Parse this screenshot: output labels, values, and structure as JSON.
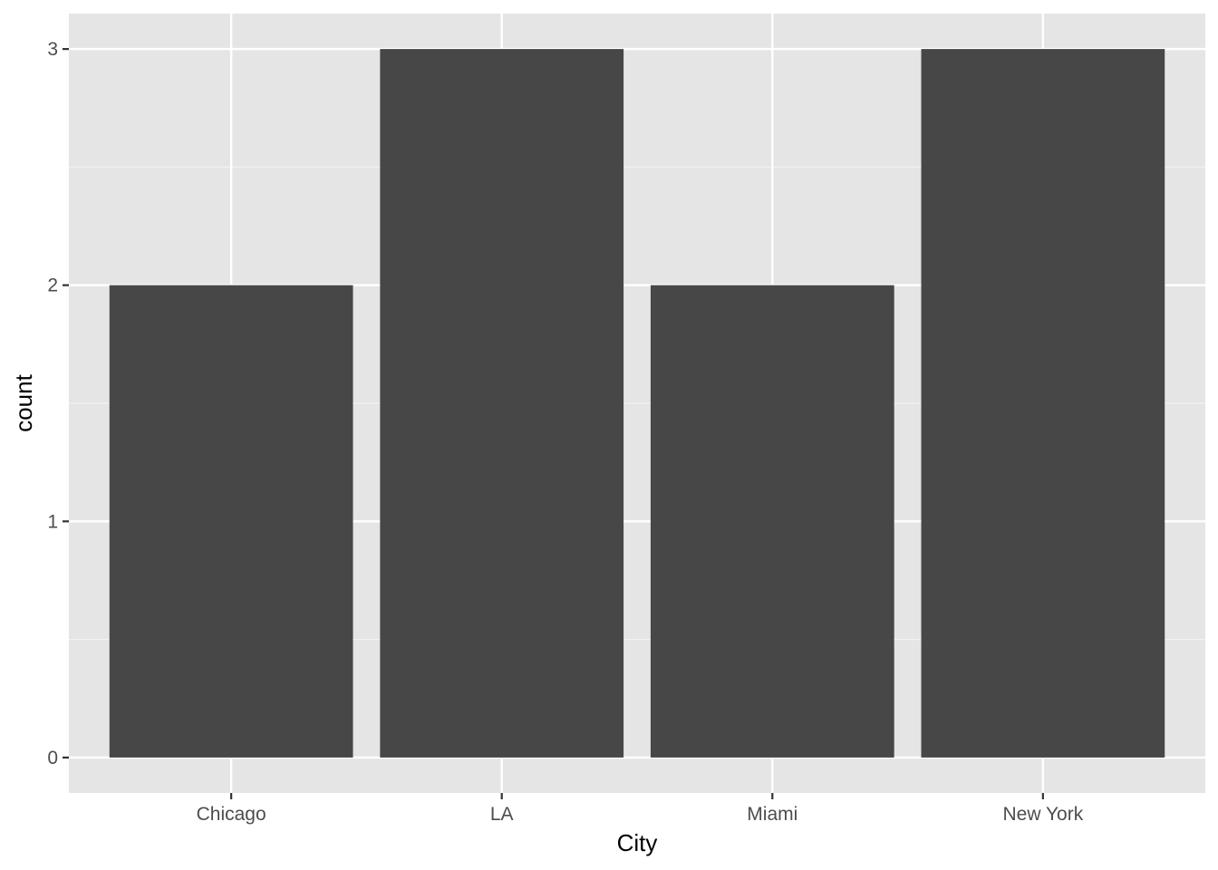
{
  "chart_data": {
    "type": "bar",
    "categories": [
      "Chicago",
      "LA",
      "Miami",
      "New York"
    ],
    "values": [
      2,
      3,
      2,
      3
    ],
    "xlabel": "City",
    "ylabel": "count",
    "ylim": [
      -0.15,
      3.15
    ],
    "yticks": [
      0,
      1,
      2,
      3
    ],
    "y_tick_labels": [
      "0",
      "1",
      "2",
      "3"
    ],
    "grid": true,
    "colors": {
      "bar": "#474747",
      "panel_background": "#e5e5e5",
      "grid_major": "#ffffff",
      "grid_minor": "#f2f2f2",
      "tick_mark": "#333333"
    }
  }
}
